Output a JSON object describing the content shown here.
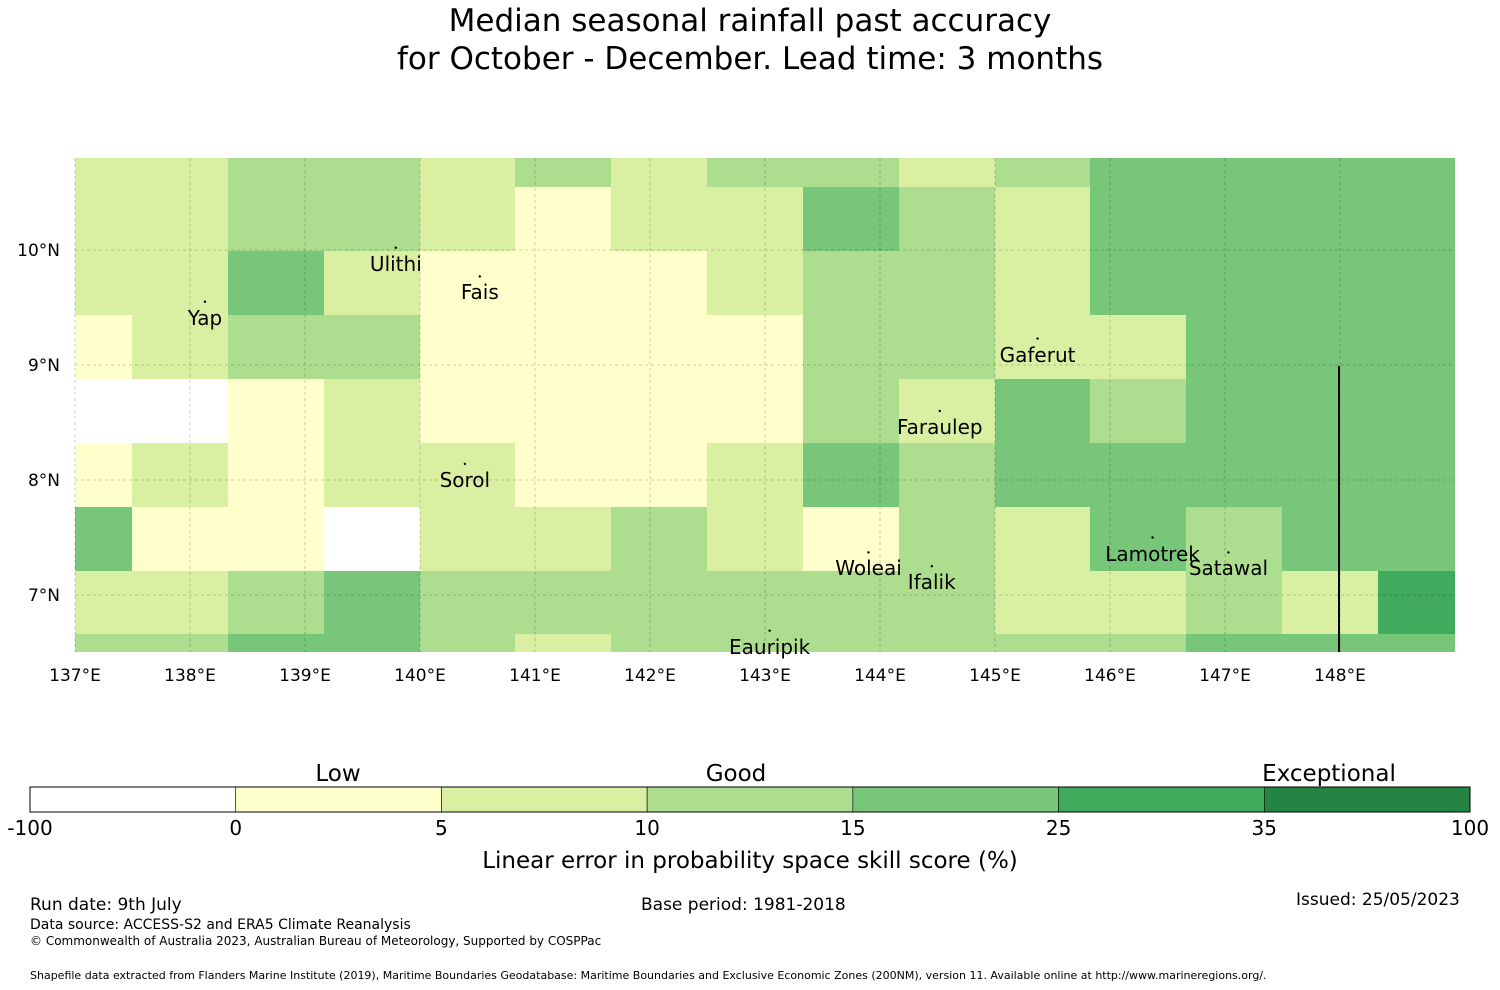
{
  "title": {
    "line1": "Median seasonal rainfall past accuracy",
    "line2": "for October - December. Lead time: 3 months"
  },
  "map": {
    "lat_labels": [
      "10°N",
      "9°N",
      "8°N",
      "7°N"
    ],
    "lon_labels": [
      "137°E",
      "138°E",
      "139°E",
      "140°E",
      "141°E",
      "142°E",
      "143°E",
      "144°E",
      "145°E",
      "146°E",
      "147°E",
      "148°E"
    ],
    "places": [
      {
        "name": "Ulithi",
        "lon": 139.79,
        "lat": 10.02
      },
      {
        "name": "Fais",
        "lon": 140.52,
        "lat": 9.77
      },
      {
        "name": "Yap",
        "lon": 138.13,
        "lat": 9.55
      },
      {
        "name": "Gaferut",
        "lon": 145.37,
        "lat": 9.23
      },
      {
        "name": "Faraulep",
        "lon": 144.52,
        "lat": 8.6
      },
      {
        "name": "Sorol",
        "lon": 140.39,
        "lat": 8.14
      },
      {
        "name": "Woleai",
        "lon": 143.9,
        "lat": 7.37
      },
      {
        "name": "Ifalik",
        "lon": 144.45,
        "lat": 7.25
      },
      {
        "name": "Lamotrek",
        "lon": 146.37,
        "lat": 7.5
      },
      {
        "name": "Satawal",
        "lon": 147.03,
        "lat": 7.37
      },
      {
        "name": "Eauripik",
        "lon": 143.04,
        "lat": 6.69
      }
    ]
  },
  "legend": {
    "categories": [
      "Low",
      "Good",
      "Exceptional"
    ],
    "ticks": [
      "-100",
      "0",
      "5",
      "10",
      "15",
      "25",
      "35",
      "100"
    ],
    "colors": [
      "#ffffff",
      "#ffffcc",
      "#d9f0a3",
      "#addd8e",
      "#78c679",
      "#41ab5d",
      "#238443"
    ],
    "label": "Linear error in probability space skill score (%)"
  },
  "footer": {
    "run_date": "Run date: 9th July",
    "base_period": "Base period: 1981-2018",
    "issued": "Issued: 25/05/2023",
    "source": "Data source: ACCESS-S2 and ERA5 Climate Reanalysis",
    "copyright": "© Commonwealth of Australia 2023, Australian Bureau of Meteorology, Supported by COSPPac",
    "shapefile": "Shapefile data extracted from Flanders Marine Institute (2019), Maritime Boundaries Geodatabase: Maritime Boundaries and Exclusive Economic Zones (200NM), version 11. Available online at http://www.marineregions.org/."
  }
}
